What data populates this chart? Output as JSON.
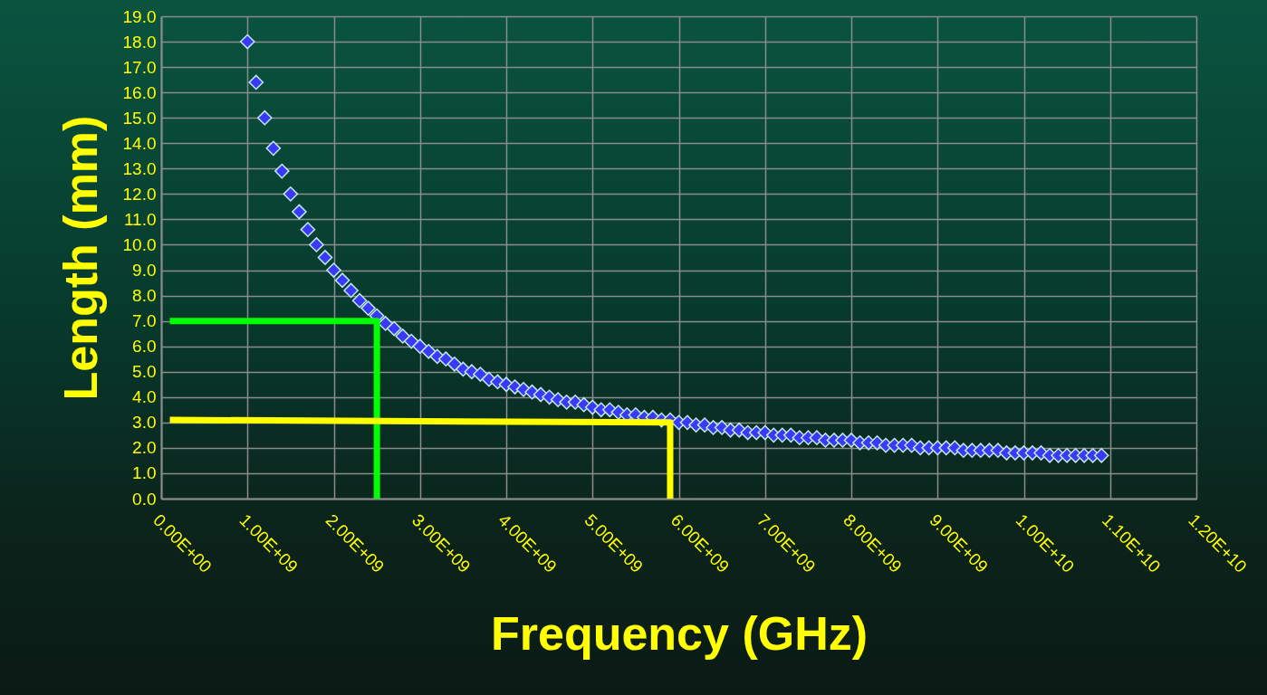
{
  "chart_data": {
    "type": "scatter",
    "xlabel": "Frequency (GHz)",
    "ylabel": "Length (mm)",
    "grid": true,
    "xlim": [
      0,
      12000000000.0
    ],
    "ylim": [
      0,
      19
    ],
    "xticks": [
      {
        "value": 0,
        "label": "0.00E+00"
      },
      {
        "value": 1000000000.0,
        "label": "1.00E+09"
      },
      {
        "value": 2000000000.0,
        "label": "2.00E+09"
      },
      {
        "value": 3000000000.0,
        "label": "3.00E+09"
      },
      {
        "value": 4000000000.0,
        "label": "4.00E+09"
      },
      {
        "value": 5000000000.0,
        "label": "5.00E+09"
      },
      {
        "value": 6000000000.0,
        "label": "6.00E+09"
      },
      {
        "value": 7000000000.0,
        "label": "7.00E+09"
      },
      {
        "value": 8000000000.0,
        "label": "8.00E+09"
      },
      {
        "value": 9000000000.0,
        "label": "9.00E+09"
      },
      {
        "value": 10000000000.0,
        "label": "1.00E+10"
      },
      {
        "value": 11000000000.0,
        "label": "1.10E+10"
      },
      {
        "value": 12000000000.0,
        "label": "1.20E+10"
      }
    ],
    "yticks": [
      {
        "value": 0,
        "label": "0.0"
      },
      {
        "value": 1,
        "label": "1.0"
      },
      {
        "value": 2,
        "label": "2.0"
      },
      {
        "value": 3,
        "label": "3.0"
      },
      {
        "value": 4,
        "label": "4.0"
      },
      {
        "value": 5,
        "label": "5.0"
      },
      {
        "value": 6,
        "label": "6.0"
      },
      {
        "value": 7,
        "label": "7.0"
      },
      {
        "value": 8,
        "label": "8.0"
      },
      {
        "value": 9,
        "label": "9.0"
      },
      {
        "value": 10,
        "label": "10.0"
      },
      {
        "value": 11,
        "label": "11.0"
      },
      {
        "value": 12,
        "label": "12.0"
      },
      {
        "value": 13,
        "label": "13.0"
      },
      {
        "value": 14,
        "label": "14.0"
      },
      {
        "value": 15,
        "label": "15.0"
      },
      {
        "value": 16,
        "label": "16.0"
      },
      {
        "value": 17,
        "label": "17.0"
      },
      {
        "value": 18,
        "label": "18.0"
      },
      {
        "value": 19,
        "label": "19.0"
      }
    ],
    "series": [
      {
        "marker": "diamond",
        "color": "#3a3af5",
        "x": [
          1000000000.0,
          1100000000.0,
          1200000000.0,
          1300000000.0,
          1400000000.0,
          1500000000.0,
          1600000000.0,
          1700000000.0,
          1800000000.0,
          1900000000.0,
          2000000000.0,
          2100000000.0,
          2200000000.0,
          2300000000.0,
          2400000000.0,
          2500000000.0,
          2600000000.0,
          2700000000.0,
          2800000000.0,
          2900000000.0,
          3000000000.0,
          3100000000.0,
          3200000000.0,
          3300000000.0,
          3400000000.0,
          3500000000.0,
          3600000000.0,
          3700000000.0,
          3800000000.0,
          3900000000.0,
          4000000000.0,
          4100000000.0,
          4200000000.0,
          4300000000.0,
          4400000000.0,
          4500000000.0,
          4600000000.0,
          4700000000.0,
          4800000000.0,
          4900000000.0,
          5000000000.0,
          5100000000.0,
          5200000000.0,
          5300000000.0,
          5400000000.0,
          5500000000.0,
          5600000000.0,
          5700000000.0,
          5800000000.0,
          5900000000.0,
          6000000000.0,
          6100000000.0,
          6200000000.0,
          6300000000.0,
          6400000000.0,
          6500000000.0,
          6600000000.0,
          6700000000.0,
          6800000000.0,
          6900000000.0,
          7000000000.0,
          7100000000.0,
          7200000000.0,
          7300000000.0,
          7400000000.0,
          7500000000.0,
          7600000000.0,
          7700000000.0,
          7800000000.0,
          7900000000.0,
          8000000000.0,
          8100000000.0,
          8200000000.0,
          8300000000.0,
          8400000000.0,
          8500000000.0,
          8600000000.0,
          8700000000.0,
          8800000000.0,
          8900000000.0,
          9000000000.0,
          9100000000.0,
          9200000000.0,
          9300000000.0,
          9400000000.0,
          9500000000.0,
          9600000000.0,
          9700000000.0,
          9800000000.0,
          9900000000.0,
          10000000000.0,
          10100000000.0,
          10200000000.0,
          10300000000.0,
          10400000000.0,
          10500000000.0,
          10600000000.0,
          10700000000.0,
          10800000000.0,
          10900000000.0
        ],
        "values": [
          18.0,
          16.4,
          15.0,
          13.8,
          12.9,
          12.0,
          11.3,
          10.6,
          10.0,
          9.5,
          9.0,
          8.6,
          8.2,
          7.8,
          7.5,
          7.2,
          6.9,
          6.7,
          6.4,
          6.2,
          6.0,
          5.8,
          5.6,
          5.5,
          5.3,
          5.1,
          5.0,
          4.9,
          4.7,
          4.6,
          4.5,
          4.4,
          4.3,
          4.2,
          4.1,
          4.0,
          3.9,
          3.8,
          3.8,
          3.7,
          3.6,
          3.5,
          3.5,
          3.4,
          3.3,
          3.3,
          3.2,
          3.2,
          3.1,
          3.1,
          3.0,
          3.0,
          2.9,
          2.9,
          2.8,
          2.8,
          2.7,
          2.7,
          2.6,
          2.6,
          2.6,
          2.5,
          2.5,
          2.5,
          2.4,
          2.4,
          2.4,
          2.3,
          2.3,
          2.3,
          2.3,
          2.2,
          2.2,
          2.2,
          2.1,
          2.1,
          2.1,
          2.1,
          2.0,
          2.0,
          2.0,
          2.0,
          2.0,
          1.9,
          1.9,
          1.9,
          1.9,
          1.9,
          1.8,
          1.8,
          1.8,
          1.8,
          1.8,
          1.7,
          1.7,
          1.7,
          1.7,
          1.7,
          1.7,
          1.7
        ]
      },
      {
        "type": "line",
        "color": "#00ff00",
        "x": [
          100000000.0,
          2500000000.0,
          2500000000.0
        ],
        "values": [
          7.0,
          7.0,
          0
        ]
      },
      {
        "type": "line",
        "color": "#ffff00",
        "x": [
          100000000.0,
          5900000000.0,
          5900000000.0
        ],
        "values": [
          3.1,
          3.0,
          0
        ]
      }
    ]
  }
}
